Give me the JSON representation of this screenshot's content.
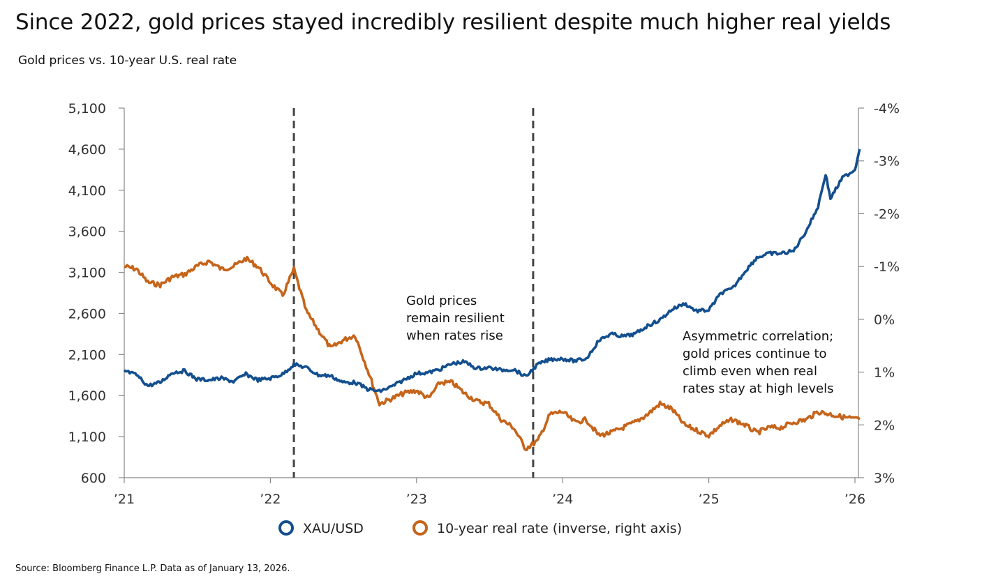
{
  "title": "Since 2022, gold prices stayed incredibly resilient despite much higher real yields",
  "subtitle": "Gold prices vs. 10-year U.S. real rate",
  "source": "Source: Bloomberg Finance L.P. Data as of January 13, 2026.",
  "chart_data": {
    "type": "line",
    "x_ticks": [
      "’21",
      "’22",
      "’23",
      "’24",
      "’25",
      "’26"
    ],
    "x_range": [
      "2021-01-01",
      "2026-01-13"
    ],
    "y_left": {
      "ticks": [
        "5,100",
        "4,600",
        "4,100",
        "3,600",
        "3,100",
        "2,600",
        "2,100",
        "1,600",
        "1,100",
        "600"
      ],
      "range": [
        600,
        5100
      ]
    },
    "y_right": {
      "ticks": [
        "-4%",
        "-3%",
        "-2%",
        "-1%",
        "0%",
        "1%",
        "2%",
        "3%"
      ],
      "range": [
        -4,
        3
      ],
      "inverted": true
    },
    "vertical_markers": [
      "2022-03-01",
      "2023-10-20"
    ],
    "annotations": [
      {
        "lines": [
          "Gold prices",
          "remain resilient",
          "when rates rise"
        ]
      },
      {
        "lines": [
          "Asymmetric correlation;",
          "gold prices continue to",
          "climb even when real",
          "rates stay at high levels"
        ]
      }
    ],
    "colors": {
      "gold": "#134f8e",
      "real_rate": "#c5641a",
      "axis": "#888888",
      "marker": "#444444"
    },
    "series": [
      {
        "name": "XAU/USD",
        "axis": "left",
        "points": [
          [
            "2021-01-01",
            1900
          ],
          [
            "2021-02-01",
            1850
          ],
          [
            "2021-03-01",
            1720
          ],
          [
            "2021-04-01",
            1760
          ],
          [
            "2021-05-01",
            1880
          ],
          [
            "2021-06-01",
            1900
          ],
          [
            "2021-07-01",
            1800
          ],
          [
            "2021-08-01",
            1790
          ],
          [
            "2021-09-01",
            1810
          ],
          [
            "2021-10-01",
            1770
          ],
          [
            "2021-11-01",
            1860
          ],
          [
            "2021-12-01",
            1790
          ],
          [
            "2022-01-01",
            1810
          ],
          [
            "2022-02-01",
            1860
          ],
          [
            "2022-03-01",
            1980
          ],
          [
            "2022-04-01",
            1940
          ],
          [
            "2022-05-01",
            1850
          ],
          [
            "2022-06-01",
            1840
          ],
          [
            "2022-07-01",
            1760
          ],
          [
            "2022-08-01",
            1760
          ],
          [
            "2022-09-01",
            1680
          ],
          [
            "2022-10-01",
            1650
          ],
          [
            "2022-11-01",
            1710
          ],
          [
            "2022-12-01",
            1790
          ],
          [
            "2023-01-01",
            1870
          ],
          [
            "2023-02-01",
            1880
          ],
          [
            "2023-03-01",
            1920
          ],
          [
            "2023-04-01",
            1990
          ],
          [
            "2023-05-01",
            2010
          ],
          [
            "2023-06-01",
            1930
          ],
          [
            "2023-07-01",
            1940
          ],
          [
            "2023-08-01",
            1910
          ],
          [
            "2023-09-01",
            1920
          ],
          [
            "2023-10-01",
            1830
          ],
          [
            "2023-11-01",
            1980
          ],
          [
            "2023-12-01",
            2040
          ],
          [
            "2024-01-01",
            2050
          ],
          [
            "2024-02-01",
            2020
          ],
          [
            "2024-03-01",
            2050
          ],
          [
            "2024-04-01",
            2270
          ],
          [
            "2024-05-01",
            2350
          ],
          [
            "2024-06-01",
            2320
          ],
          [
            "2024-07-01",
            2350
          ],
          [
            "2024-08-01",
            2450
          ],
          [
            "2024-09-01",
            2520
          ],
          [
            "2024-10-01",
            2650
          ],
          [
            "2024-11-01",
            2720
          ],
          [
            "2024-12-01",
            2630
          ],
          [
            "2025-01-01",
            2640
          ],
          [
            "2025-02-01",
            2850
          ],
          [
            "2025-03-01",
            2900
          ],
          [
            "2025-04-01",
            3110
          ],
          [
            "2025-05-01",
            3280
          ],
          [
            "2025-06-01",
            3330
          ],
          [
            "2025-07-01",
            3330
          ],
          [
            "2025-08-01",
            3360
          ],
          [
            "2025-09-01",
            3600
          ],
          [
            "2025-10-01",
            3900
          ],
          [
            "2025-10-20",
            4300
          ],
          [
            "2025-11-01",
            4000
          ],
          [
            "2025-12-01",
            4250
          ],
          [
            "2026-01-01",
            4350
          ],
          [
            "2026-01-13",
            4600
          ]
        ]
      },
      {
        "name": "10-year real rate (inverse, right axis)",
        "axis": "right",
        "points": [
          [
            "2021-01-01",
            -1.0
          ],
          [
            "2021-02-01",
            -0.95
          ],
          [
            "2021-03-01",
            -0.7
          ],
          [
            "2021-04-01",
            -0.65
          ],
          [
            "2021-05-01",
            -0.8
          ],
          [
            "2021-06-01",
            -0.85
          ],
          [
            "2021-07-01",
            -1.0
          ],
          [
            "2021-08-01",
            -1.1
          ],
          [
            "2021-09-01",
            -0.95
          ],
          [
            "2021-10-01",
            -1.0
          ],
          [
            "2021-11-01",
            -1.15
          ],
          [
            "2021-12-01",
            -1.0
          ],
          [
            "2022-01-01",
            -0.7
          ],
          [
            "2022-02-01",
            -0.45
          ],
          [
            "2022-03-01",
            -0.95
          ],
          [
            "2022-04-01",
            -0.15
          ],
          [
            "2022-05-01",
            0.2
          ],
          [
            "2022-06-01",
            0.55
          ],
          [
            "2022-07-01",
            0.4
          ],
          [
            "2022-08-01",
            0.3
          ],
          [
            "2022-09-01",
            0.95
          ],
          [
            "2022-10-01",
            1.6
          ],
          [
            "2022-11-01",
            1.5
          ],
          [
            "2022-12-01",
            1.4
          ],
          [
            "2023-01-01",
            1.35
          ],
          [
            "2023-02-01",
            1.5
          ],
          [
            "2023-03-01",
            1.2
          ],
          [
            "2023-04-01",
            1.2
          ],
          [
            "2023-05-01",
            1.4
          ],
          [
            "2023-06-01",
            1.55
          ],
          [
            "2023-07-01",
            1.6
          ],
          [
            "2023-08-01",
            1.9
          ],
          [
            "2023-09-01",
            2.05
          ],
          [
            "2023-10-01",
            2.45
          ],
          [
            "2023-11-01",
            2.3
          ],
          [
            "2023-12-01",
            1.8
          ],
          [
            "2024-01-01",
            1.75
          ],
          [
            "2024-02-01",
            1.95
          ],
          [
            "2024-03-01",
            1.9
          ],
          [
            "2024-04-01",
            2.2
          ],
          [
            "2024-05-01",
            2.15
          ],
          [
            "2024-06-01",
            2.05
          ],
          [
            "2024-07-01",
            1.95
          ],
          [
            "2024-08-01",
            1.8
          ],
          [
            "2024-09-01",
            1.6
          ],
          [
            "2024-10-01",
            1.7
          ],
          [
            "2024-11-01",
            2.0
          ],
          [
            "2024-12-01",
            2.1
          ],
          [
            "2025-01-01",
            2.2
          ],
          [
            "2025-02-01",
            2.0
          ],
          [
            "2025-03-01",
            1.9
          ],
          [
            "2025-04-01",
            2.0
          ],
          [
            "2025-05-01",
            2.15
          ],
          [
            "2025-06-01",
            2.05
          ],
          [
            "2025-07-01",
            2.05
          ],
          [
            "2025-08-01",
            1.95
          ],
          [
            "2025-09-01",
            1.9
          ],
          [
            "2025-10-01",
            1.75
          ],
          [
            "2025-11-01",
            1.8
          ],
          [
            "2025-12-01",
            1.85
          ],
          [
            "2026-01-13",
            1.9
          ]
        ]
      }
    ]
  }
}
